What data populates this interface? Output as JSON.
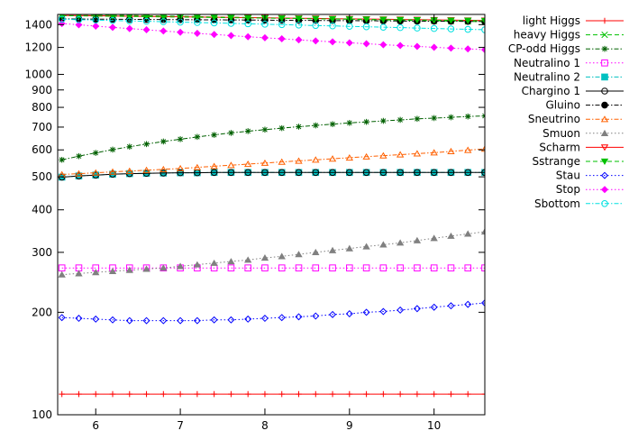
{
  "chart_data": {
    "type": "line",
    "title": "",
    "xlabel": "",
    "ylabel": "",
    "y_scale": "log",
    "xlim": [
      5.55,
      10.6
    ],
    "ylim": [
      100,
      1500
    ],
    "x_ticks": [
      "6",
      "7",
      "8",
      "9",
      "10"
    ],
    "x_tick_values": [
      6,
      7,
      8,
      9,
      10
    ],
    "y_ticks": [
      "100",
      "200",
      "300",
      "400",
      "500",
      "600",
      "700",
      "800",
      "900",
      "1000",
      "1200",
      "1400"
    ],
    "y_tick_values": [
      100,
      200,
      300,
      400,
      500,
      600,
      700,
      800,
      900,
      1000,
      1200,
      1400
    ],
    "legend_position": "outside-right",
    "grid": false,
    "x": [
      5.6,
      5.8,
      6.0,
      6.2,
      6.4,
      6.6,
      6.8,
      7.0,
      7.2,
      7.4,
      7.6,
      7.8,
      8.0,
      8.2,
      8.4,
      8.6,
      8.8,
      9.0,
      9.2,
      9.4,
      9.6,
      9.8,
      10.0,
      10.2,
      10.4,
      10.6
    ],
    "series": [
      {
        "name": "light Higgs",
        "color": "#ff0000",
        "marker": "plus",
        "dash": "none",
        "values": [
          115,
          115,
          115,
          115,
          115,
          115,
          115,
          115,
          115,
          115,
          115,
          115,
          115,
          115,
          115,
          115,
          115,
          115,
          115,
          115,
          115,
          115,
          115,
          115,
          115,
          115
        ]
      },
      {
        "name": "heavy Higgs",
        "color": "#00c000",
        "marker": "cross",
        "dash": "dash",
        "values": [
          1500,
          1498,
          1495,
          1492,
          1490,
          1487,
          1484,
          1481,
          1478,
          1475,
          1472,
          1469,
          1466,
          1463,
          1460,
          1457,
          1454,
          1451,
          1448,
          1446,
          1443,
          1440,
          1437,
          1434,
          1431,
          1428
        ]
      },
      {
        "name": "CP-odd Higgs",
        "color": "#006000",
        "marker": "star",
        "dash": "dashdot",
        "values": [
          561,
          575,
          588,
          601,
          613,
          624,
          635,
          645,
          655,
          664,
          673,
          681,
          688,
          695,
          702,
          708,
          714,
          720,
          725,
          730,
          735,
          740,
          744,
          748,
          752,
          755
        ]
      },
      {
        "name": "Neutralino 1",
        "color": "#ff00ff",
        "marker": "square-open",
        "dash": "dot",
        "values": [
          270,
          270,
          270,
          270,
          270,
          270,
          270,
          270,
          270,
          270,
          270,
          270,
          270,
          270,
          270,
          270,
          270,
          270,
          270,
          270,
          270,
          270,
          270,
          270,
          270,
          270
        ]
      },
      {
        "name": "Neutralino 2",
        "color": "#00c0c0",
        "marker": "square-filled",
        "dash": "dashdot",
        "values": [
          499,
          503,
          506,
          509,
          511,
          512,
          513,
          514,
          514,
          515,
          515,
          515,
          515,
          515,
          515,
          515,
          515,
          515,
          515,
          515,
          515,
          515,
          515,
          515,
          515,
          515
        ]
      },
      {
        "name": "Chargino 1",
        "color": "#000000",
        "marker": "circle-open",
        "dash": "none",
        "values": [
          499,
          503,
          506,
          509,
          511,
          512,
          513,
          514,
          514,
          515,
          515,
          515,
          515,
          515,
          515,
          515,
          515,
          515,
          515,
          515,
          515,
          515,
          515,
          515,
          515,
          515
        ]
      },
      {
        "name": "Gluino",
        "color": "#000000",
        "marker": "circle-filled",
        "dash": "dashdot",
        "values": [
          1455,
          1454,
          1453,
          1452,
          1451,
          1450,
          1449,
          1448,
          1447,
          1446,
          1445,
          1444,
          1443,
          1442,
          1441,
          1440,
          1439,
          1438,
          1437,
          1436,
          1435,
          1434,
          1433,
          1432,
          1431,
          1430
        ]
      },
      {
        "name": "Sneutrino",
        "color": "#ff6000",
        "marker": "triangle-open",
        "dash": "dashdot",
        "values": [
          508,
          511,
          514,
          517,
          520,
          523,
          526,
          529,
          533,
          537,
          541,
          545,
          549,
          553,
          557,
          561,
          565,
          569,
          573,
          577,
          581,
          585,
          589,
          594,
          599,
          604
        ]
      },
      {
        "name": "Smuon",
        "color": "#808080",
        "marker": "triangle-filled",
        "dash": "dot",
        "values": [
          258,
          260,
          262,
          264,
          266,
          268,
          270,
          273,
          276,
          279,
          282,
          285,
          289,
          292,
          296,
          300,
          304,
          308,
          312,
          316,
          320,
          325,
          330,
          335,
          340,
          345
        ]
      },
      {
        "name": "Scharm",
        "color": "#ff0000",
        "marker": "triangle-down-open",
        "dash": "none",
        "values": [
          1490,
          1488,
          1486,
          1484,
          1482,
          1480,
          1478,
          1476,
          1474,
          1472,
          1470,
          1468,
          1466,
          1464,
          1462,
          1460,
          1458,
          1456,
          1454,
          1452,
          1450,
          1448,
          1446,
          1444,
          1442,
          1440
        ]
      },
      {
        "name": "Sstrange",
        "color": "#00c000",
        "marker": "triangle-down-filled",
        "dash": "dash",
        "values": [
          1487,
          1485,
          1483,
          1481,
          1479,
          1477,
          1475,
          1473,
          1471,
          1469,
          1467,
          1465,
          1463,
          1461,
          1459,
          1457,
          1455,
          1453,
          1451,
          1449,
          1447,
          1445,
          1443,
          1441,
          1439,
          1437
        ]
      },
      {
        "name": "Stau",
        "color": "#0000ff",
        "marker": "diamond-open",
        "dash": "dot",
        "values": [
          193,
          192,
          191,
          190,
          189,
          189,
          189,
          189,
          189,
          190,
          190,
          191,
          192,
          193,
          194,
          195,
          197,
          198,
          200,
          201,
          203,
          205,
          207,
          209,
          211,
          213
        ]
      },
      {
        "name": "Stop",
        "color": "#ff00ff",
        "marker": "diamond-filled",
        "dash": "dot",
        "values": [
          1410,
          1398,
          1386,
          1374,
          1363,
          1352,
          1341,
          1330,
          1320,
          1310,
          1300,
          1290,
          1281,
          1272,
          1263,
          1254,
          1246,
          1238,
          1230,
          1222,
          1215,
          1208,
          1201,
          1194,
          1188,
          1182
        ]
      },
      {
        "name": "Sbottom",
        "color": "#00e0e0",
        "marker": "circle-open",
        "dash": "dashdot",
        "values": [
          1452,
          1448,
          1444,
          1440,
          1436,
          1432,
          1428,
          1424,
          1420,
          1416,
          1412,
          1408,
          1404,
          1400,
          1396,
          1392,
          1388,
          1384,
          1380,
          1376,
          1372,
          1368,
          1364,
          1360,
          1356,
          1352
        ]
      }
    ]
  }
}
